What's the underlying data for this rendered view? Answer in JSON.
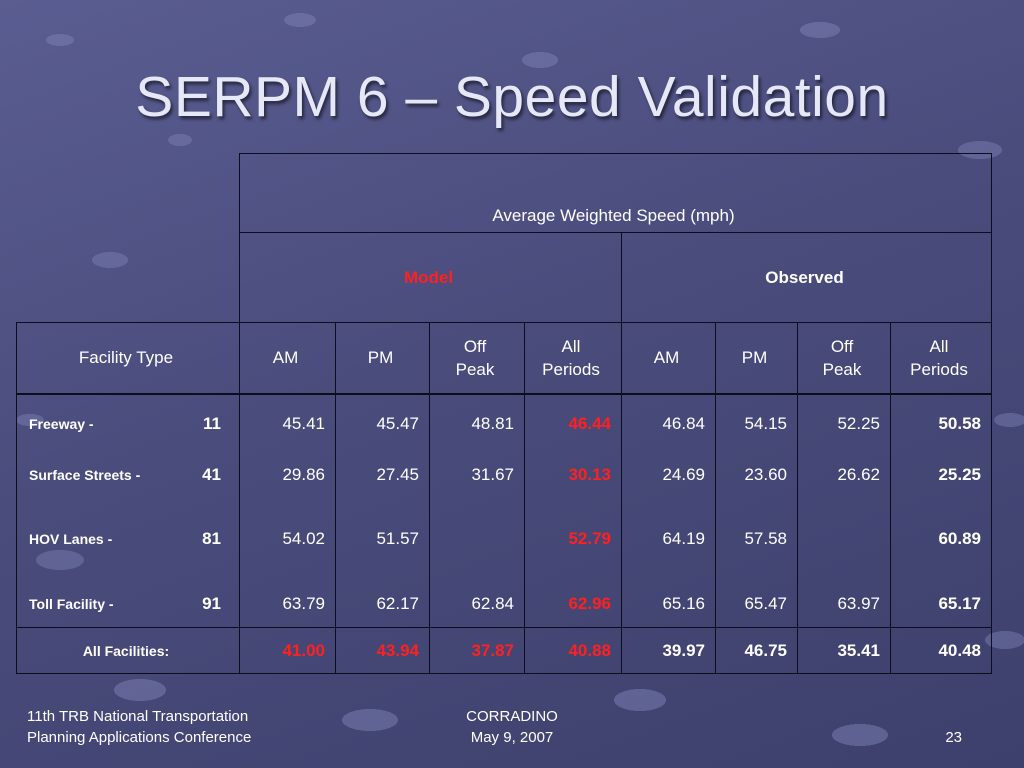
{
  "title": "SERPM 6 – Speed Validation",
  "table": {
    "header_main": "Average Weighted Speed (mph)",
    "group_model": "Model",
    "group_observed": "Observed",
    "col_facility": "Facility Type",
    "col_model_am": "AM",
    "col_model_pm": "PM",
    "col_model_off_1": "Off",
    "col_model_off_2": "Peak",
    "col_model_all_1": "All",
    "col_model_all_2": "Periods",
    "col_obs_am": "AM",
    "col_obs_pm": "PM",
    "col_obs_off_1": "Off",
    "col_obs_off_2": "Peak",
    "col_obs_all_1": "All",
    "col_obs_all_2": "Periods",
    "rows": [
      {
        "name": "Freeway -",
        "code": "11",
        "m_am": "45.41",
        "m_pm": "45.47",
        "m_off": "48.81",
        "m_all": "46.44",
        "o_am": "46.84",
        "o_pm": "54.15",
        "o_off": "52.25",
        "o_all": "50.58"
      },
      {
        "name": "Surface Streets -",
        "code": "41",
        "m_am": "29.86",
        "m_pm": "27.45",
        "m_off": "31.67",
        "m_all": "30.13",
        "o_am": "24.69",
        "o_pm": "23.60",
        "o_off": "26.62",
        "o_all": "25.25"
      },
      {
        "name": "HOV Lanes -",
        "code": "81",
        "m_am": "54.02",
        "m_pm": "51.57",
        "m_off": "",
        "m_all": "52.79",
        "o_am": "64.19",
        "o_pm": "57.58",
        "o_off": "",
        "o_all": "60.89"
      },
      {
        "name": "Toll Facility -",
        "code": "91",
        "m_am": "63.79",
        "m_pm": "62.17",
        "m_off": "62.84",
        "m_all": "62.96",
        "o_am": "65.16",
        "o_pm": "65.47",
        "o_off": "63.97",
        "o_all": "65.17"
      }
    ],
    "total": {
      "label": "All Facilities:",
      "m_am": "41.00",
      "m_pm": "43.94",
      "m_off": "37.87",
      "m_all": "40.88",
      "o_am": "39.97",
      "o_pm": "46.75",
      "o_off": "35.41",
      "o_all": "40.48"
    }
  },
  "footer": {
    "left_line1": "11th TRB National Transportation",
    "left_line2": "Planning Applications Conference",
    "center_line1": "CORRADINO",
    "center_line2": "May 9, 2007",
    "page_number": "23"
  },
  "colors": {
    "background": "#4a4c7c",
    "title": "#e6e7f7",
    "model_highlight": "#ff2020",
    "grid_lines": "#0d0d1d"
  }
}
